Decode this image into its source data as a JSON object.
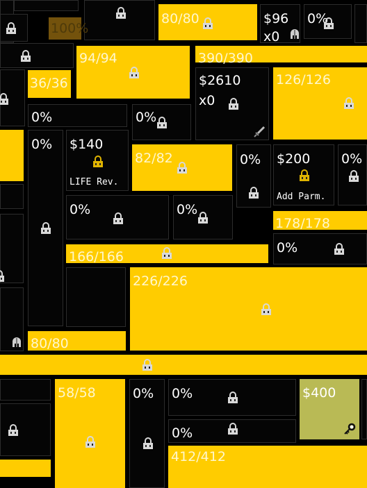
{
  "colors": {
    "background": "#000000",
    "tile_gold": "#ffcc00",
    "tile_dark": "#050505",
    "tile_olive": "#b9ba55",
    "tile_brown": "#73520c",
    "lock_icon": "#d9d9d9",
    "gold_lock_icon": "#e0b400"
  },
  "tiles": {
    "t_gold_80a": {
      "value": "80/80"
    },
    "t_buy_96": {
      "price": "$96",
      "mult": "x0"
    },
    "t_pct_top": {
      "value": "0%"
    },
    "t_brown_100": {
      "value": "100%"
    },
    "t_gold_94": {
      "value": "94/94"
    },
    "t_gold_390": {
      "value": "390/390"
    },
    "t_gold_36": {
      "value": "36/36"
    },
    "t_buy_2610": {
      "price": "$2610",
      "mult": "x0"
    },
    "t_gold_126": {
      "value": "126/126"
    },
    "t_pct_a": {
      "value": "0%"
    },
    "t_pct_b": {
      "value": "0%"
    },
    "t_pct_c": {
      "value": "0%"
    },
    "t_life_rev": {
      "price": "$140",
      "caption": "LIFE Rev."
    },
    "t_gold_82": {
      "value": "82/82"
    },
    "t_pct_d": {
      "value": "0%"
    },
    "t_add_parm": {
      "price": "$200",
      "caption": "Add Parm."
    },
    "t_pct_e": {
      "value": "0%"
    },
    "t_pct_f": {
      "value": "0%"
    },
    "t_pct_g": {
      "value": "0%"
    },
    "t_gold_178": {
      "value": "178/178"
    },
    "t_pct_h": {
      "value": "0%"
    },
    "t_gold_166": {
      "value": "166/166"
    },
    "t_gold_226": {
      "value": "226/226"
    },
    "t_gold_80b": {
      "value": "80/80"
    },
    "t_gold_58": {
      "value": "58/58"
    },
    "t_pct_i": {
      "value": "0%"
    },
    "t_pct_j": {
      "value": "0%"
    },
    "t_olive_400": {
      "price": "$400"
    },
    "t_pct_k": {
      "value": "0%"
    },
    "t_gold_412": {
      "value": "412/412"
    }
  }
}
